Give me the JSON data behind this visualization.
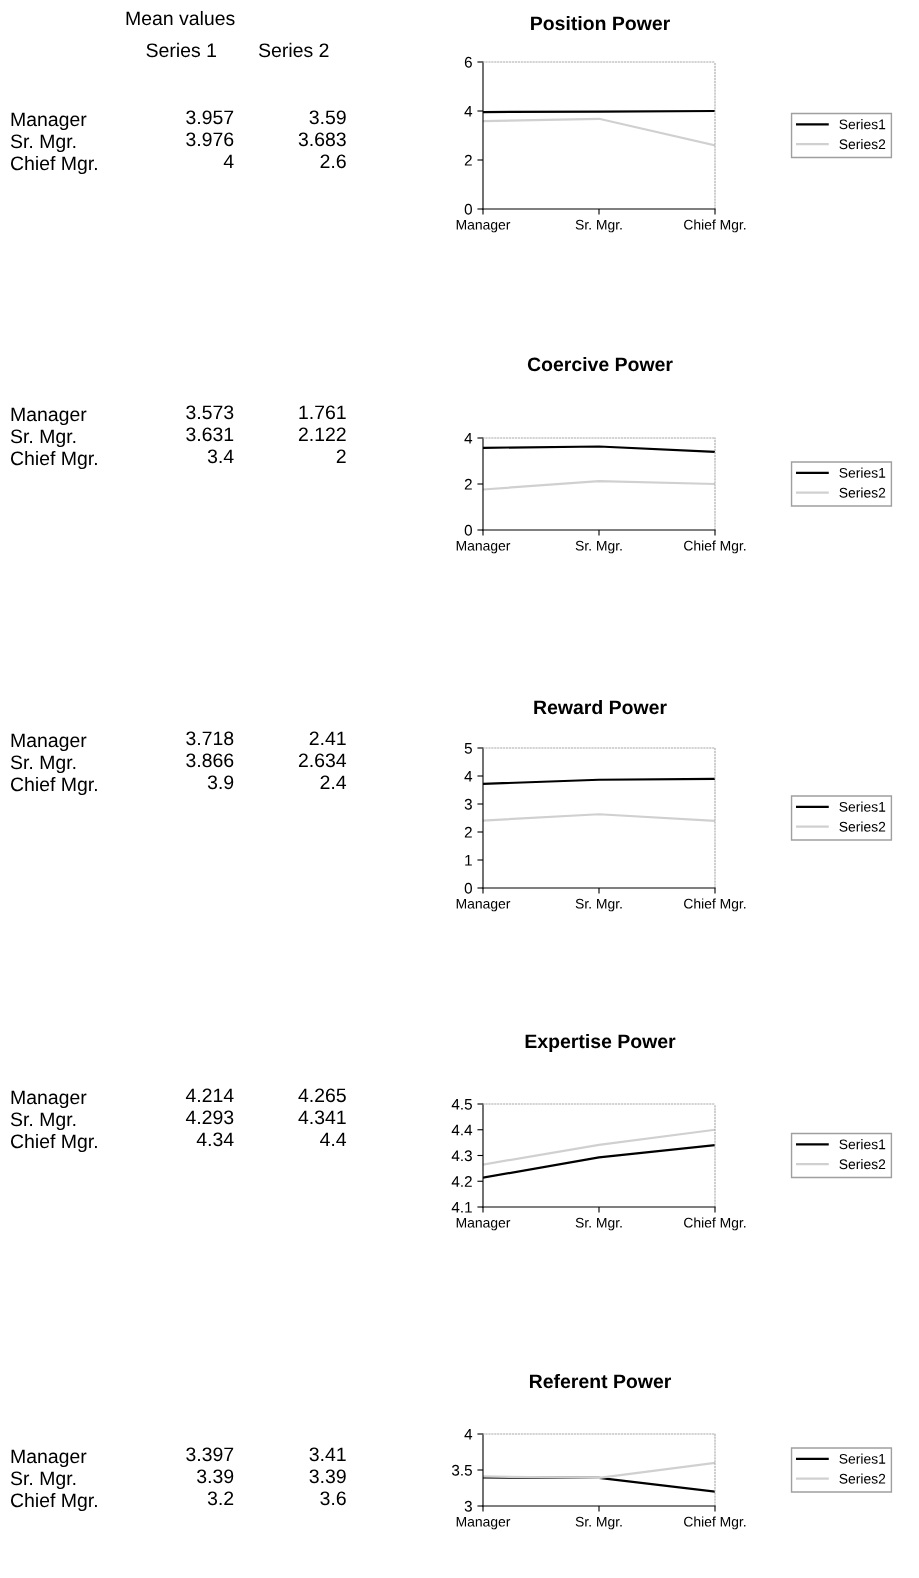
{
  "chart_data": [
    {
      "type": "heatmap",
      "title": "Mean values",
      "categories": [
        "Series 1",
        "Series 2"
      ],
      "y_categories": [
        "Manager",
        "Sr. Mgr.",
        "Chief Mgr."
      ],
      "cells": [
        [
          3.957,
          3.59
        ],
        [
          3.976,
          3.683
        ],
        [
          4,
          2.6
        ]
      ],
      "data_labels": true
    },
    {
      "type": "line",
      "title": "Position Power",
      "categories": [
        "Manager",
        "Sr. Mgr.",
        "Chief Mgr."
      ],
      "series": [
        {
          "name": "Series1",
          "color": "#000000",
          "values": [
            3.957,
            3.976,
            4
          ]
        },
        {
          "name": "Series2",
          "color": "#d0d0d0",
          "values": [
            3.59,
            3.683,
            2.6
          ]
        }
      ],
      "ylim": [
        0,
        6
      ],
      "yticks": [
        0,
        2,
        4,
        6
      ],
      "legend": "right"
    },
    {
      "type": "heatmap",
      "categories": [
        null,
        null
      ],
      "y_categories": [
        "Manager",
        "Sr. Mgr.",
        "Chief Mgr."
      ],
      "cells": [
        [
          3.573,
          1.761
        ],
        [
          3.631,
          2.122
        ],
        [
          3.4,
          2
        ]
      ],
      "data_labels": true
    },
    {
      "type": "line",
      "title": "Coercive Power",
      "categories": [
        "Manager",
        "Sr. Mgr.",
        "Chief Mgr."
      ],
      "series": [
        {
          "name": "Series1",
          "color": "#000000",
          "values": [
            3.573,
            3.631,
            3.4
          ]
        },
        {
          "name": "Series2",
          "color": "#d0d0d0",
          "values": [
            1.761,
            2.122,
            2
          ]
        }
      ],
      "ylim": [
        0,
        4
      ],
      "yticks": [
        0,
        2,
        4
      ],
      "legend": "right"
    },
    {
      "type": "heatmap",
      "categories": [
        null,
        null
      ],
      "y_categories": [
        "Manager",
        "Sr. Mgr.",
        "Chief Mgr."
      ],
      "cells": [
        [
          3.718,
          2.41
        ],
        [
          3.866,
          2.634
        ],
        [
          3.9,
          2.4
        ]
      ],
      "data_labels": true
    },
    {
      "type": "line",
      "title": "Reward Power",
      "categories": [
        "Manager",
        "Sr. Mgr.",
        "Chief Mgr."
      ],
      "series": [
        {
          "name": "Series1",
          "color": "#000000",
          "values": [
            3.718,
            3.866,
            3.9
          ]
        },
        {
          "name": "Series2",
          "color": "#d0d0d0",
          "values": [
            2.41,
            2.634,
            2.4
          ]
        }
      ],
      "ylim": [
        0,
        5
      ],
      "yticks": [
        0,
        1,
        2,
        3,
        4,
        5
      ],
      "legend": "right"
    },
    {
      "type": "heatmap",
      "categories": [
        null,
        null
      ],
      "y_categories": [
        "Manager",
        "Sr. Mgr.",
        "Chief Mgr."
      ],
      "cells": [
        [
          4.214,
          4.265
        ],
        [
          4.293,
          4.341
        ],
        [
          4.34,
          4.4
        ]
      ],
      "data_labels": true
    },
    {
      "type": "line",
      "title": "Expertise Power",
      "categories": [
        "Manager",
        "Sr. Mgr.",
        "Chief Mgr."
      ],
      "series": [
        {
          "name": "Series1",
          "color": "#000000",
          "values": [
            4.214,
            4.293,
            4.34
          ]
        },
        {
          "name": "Series2",
          "color": "#d0d0d0",
          "values": [
            4.265,
            4.341,
            4.4
          ]
        }
      ],
      "ylim": [
        4.1,
        4.5
      ],
      "yticks": [
        4.1,
        4.2,
        4.3,
        4.4,
        4.5
      ],
      "legend": "right"
    },
    {
      "type": "heatmap",
      "categories": [
        null,
        null
      ],
      "y_categories": [
        "Manager",
        "Sr. Mgr.",
        "Chief Mgr."
      ],
      "cells": [
        [
          3.397,
          3.41
        ],
        [
          3.39,
          3.39
        ],
        [
          3.2,
          3.6
        ]
      ],
      "data_labels": true
    },
    {
      "type": "line",
      "title": "Referent Power",
      "categories": [
        "Manager",
        "Sr. Mgr.",
        "Chief Mgr."
      ],
      "series": [
        {
          "name": "Series1",
          "color": "#000000",
          "values": [
            3.397,
            3.39,
            3.2
          ]
        },
        {
          "name": "Series2",
          "color": "#d0d0d0",
          "values": [
            3.41,
            3.39,
            3.6
          ]
        }
      ],
      "ylim": [
        3,
        4
      ],
      "yticks": [
        3,
        3.5,
        4
      ],
      "legend": "right"
    }
  ]
}
